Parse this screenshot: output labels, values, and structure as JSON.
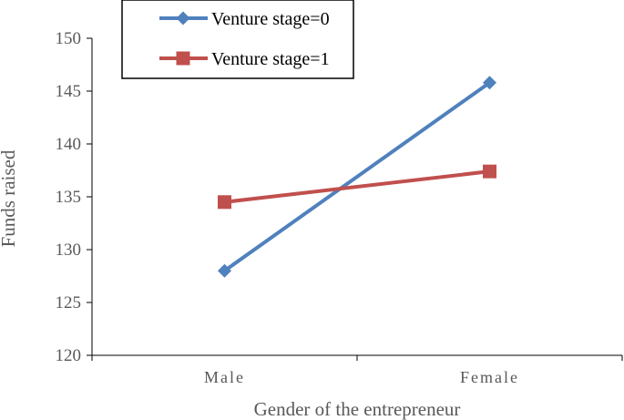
{
  "chart_data": {
    "type": "line",
    "categories": [
      "Male",
      "Female"
    ],
    "series": [
      {
        "name": "Venture stage=0",
        "values": [
          128.0,
          145.8
        ],
        "color": "#4f81bd",
        "marker": "diamond"
      },
      {
        "name": "Venture stage=1",
        "values": [
          134.5,
          137.4
        ],
        "color": "#c0504d",
        "marker": "square"
      }
    ],
    "xlabel": "Gender of the entrepreneur",
    "ylabel": "Funds  raised",
    "ylim": [
      120,
      150
    ],
    "yticks": [
      120,
      125,
      130,
      135,
      140,
      145,
      150
    ],
    "grid": false,
    "legend_position": "top"
  }
}
